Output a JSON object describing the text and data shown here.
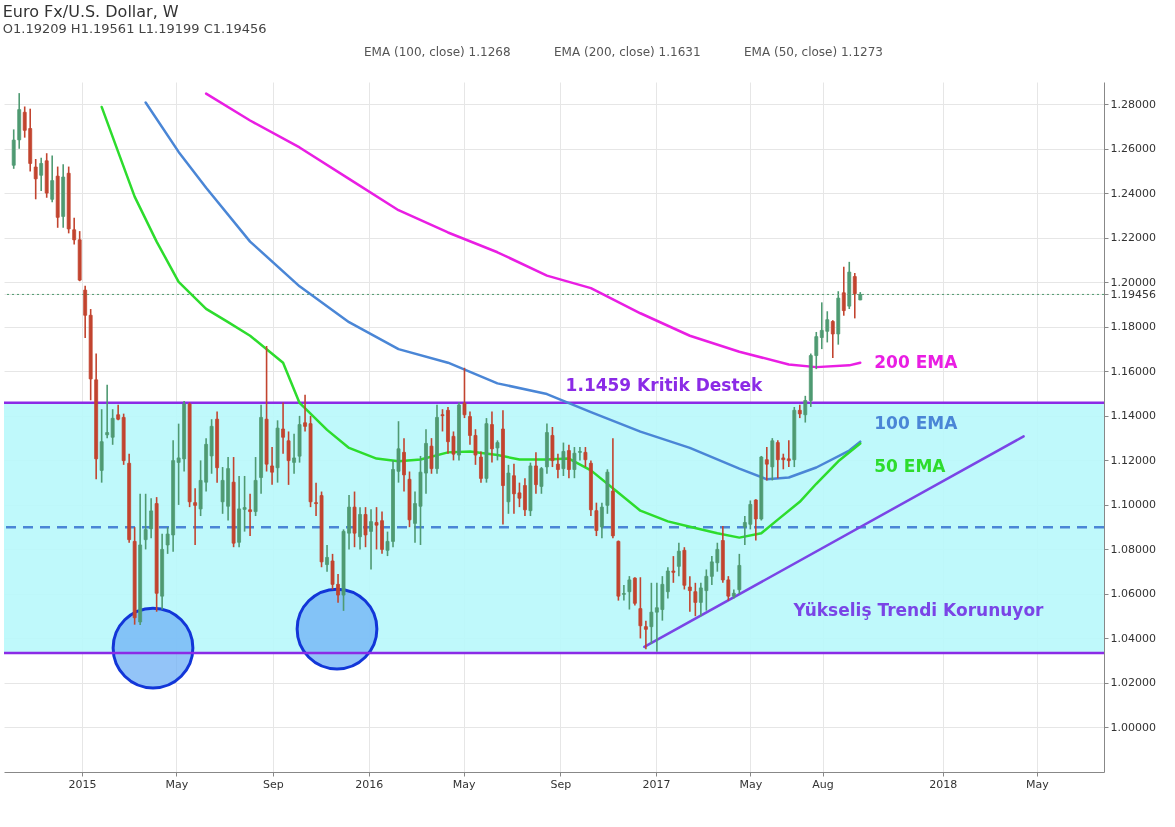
{
  "chart_data": {
    "type": "candlestick",
    "title": "Euro Fx/U.S. Dollar, W",
    "subtitle": "O1.19209 H1.19561 L1.19199 C1.19456",
    "x": [
      "2014-10-06",
      "2014-10-13",
      "2014-10-20",
      "2014-10-27",
      "2014-11-03",
      "2014-11-10",
      "2014-11-17",
      "2014-11-24",
      "2014-12-01",
      "2014-12-08",
      "2014-12-15",
      "2014-12-22",
      "2014-12-29",
      "2015-01-05",
      "2015-01-12",
      "2015-01-19",
      "2015-01-26",
      "2015-02-02",
      "2015-02-09",
      "2015-02-16",
      "2015-02-23",
      "2015-03-02",
      "2015-03-09",
      "2015-03-16",
      "2015-03-23",
      "2015-03-30",
      "2015-04-06",
      "2015-04-13",
      "2015-04-20",
      "2015-04-27",
      "2015-05-04",
      "2015-05-11",
      "2015-05-18",
      "2015-05-25",
      "2015-06-01",
      "2015-06-08",
      "2015-06-15",
      "2015-06-22",
      "2015-06-29",
      "2015-07-06",
      "2015-07-13",
      "2015-07-20",
      "2015-07-27",
      "2015-08-03",
      "2015-08-10",
      "2015-08-17",
      "2015-08-24",
      "2015-08-31",
      "2015-09-07",
      "2015-09-14",
      "2015-09-21",
      "2015-09-28",
      "2015-10-05",
      "2015-10-12",
      "2015-10-19",
      "2015-10-26",
      "2015-11-02",
      "2015-11-09",
      "2015-11-16",
      "2015-11-23",
      "2015-11-30",
      "2015-12-07",
      "2015-12-14",
      "2015-12-21",
      "2015-12-28",
      "2016-01-04",
      "2016-01-11",
      "2016-01-18",
      "2016-01-25",
      "2016-02-01",
      "2016-02-08",
      "2016-02-15",
      "2016-02-22",
      "2016-02-29",
      "2016-03-07",
      "2016-03-14",
      "2016-03-21",
      "2016-03-28",
      "2016-04-04",
      "2016-04-11",
      "2016-04-18",
      "2016-04-25",
      "2016-05-02",
      "2016-05-09",
      "2016-05-16",
      "2016-05-23",
      "2016-05-30",
      "2016-06-06",
      "2016-06-13",
      "2016-06-20",
      "2016-06-27",
      "2016-07-04",
      "2016-07-11",
      "2016-07-18",
      "2016-07-25",
      "2016-08-01",
      "2016-08-08",
      "2016-08-15",
      "2016-08-22",
      "2016-08-29",
      "2016-09-05",
      "2016-09-12",
      "2016-09-19",
      "2016-09-26",
      "2016-10-03",
      "2016-10-10",
      "2016-10-17",
      "2016-10-24",
      "2016-10-31",
      "2016-11-07",
      "2016-11-14",
      "2016-11-21",
      "2016-11-28",
      "2016-12-05",
      "2016-12-12",
      "2016-12-19",
      "2016-12-26",
      "2017-01-02",
      "2017-01-09",
      "2017-01-16",
      "2017-01-23",
      "2017-01-30",
      "2017-02-06",
      "2017-02-13",
      "2017-02-20",
      "2017-02-27",
      "2017-03-06",
      "2017-03-13",
      "2017-03-20",
      "2017-03-27",
      "2017-04-03",
      "2017-04-10",
      "2017-04-17",
      "2017-04-24",
      "2017-05-01",
      "2017-05-08",
      "2017-05-15",
      "2017-05-22",
      "2017-05-29",
      "2017-06-05",
      "2017-06-12",
      "2017-06-19",
      "2017-06-26",
      "2017-07-03",
      "2017-07-10",
      "2017-07-17",
      "2017-07-24",
      "2017-07-31",
      "2017-08-07",
      "2017-08-14",
      "2017-08-21",
      "2017-08-28",
      "2017-09-04",
      "2017-09-11",
      "2017-09-18"
    ],
    "ohlc": [
      [
        1.2526,
        1.2687,
        1.251,
        1.2639
      ],
      [
        1.264,
        1.285,
        1.26,
        1.2776
      ],
      [
        1.2764,
        1.279,
        1.265,
        1.2683
      ],
      [
        1.2691,
        1.278,
        1.2498,
        1.2534
      ],
      [
        1.2518,
        1.2554,
        1.2373,
        1.2465
      ],
      [
        1.2481,
        1.256,
        1.241,
        1.2534
      ],
      [
        1.2546,
        1.258,
        1.238,
        1.2401
      ],
      [
        1.2373,
        1.257,
        1.236,
        1.2457
      ],
      [
        1.2477,
        1.252,
        1.2245,
        1.2292
      ],
      [
        1.2296,
        1.253,
        1.2245,
        1.2473
      ],
      [
        1.249,
        1.252,
        1.222,
        1.224
      ],
      [
        1.2236,
        1.229,
        1.217,
        1.2191
      ],
      [
        1.2191,
        1.223,
        1.2005,
        1.201
      ],
      [
        1.1965,
        1.1985,
        1.175,
        1.1852
      ],
      [
        1.1852,
        1.188,
        1.147,
        1.1566
      ],
      [
        1.1562,
        1.168,
        1.1115,
        1.1207
      ],
      [
        1.1155,
        1.143,
        1.11,
        1.1284
      ],
      [
        1.1315,
        1.154,
        1.13,
        1.1325
      ],
      [
        1.1304,
        1.143,
        1.127,
        1.1389
      ],
      [
        1.1405,
        1.145,
        1.138,
        1.1385
      ],
      [
        1.1393,
        1.141,
        1.118,
        1.1199
      ],
      [
        1.1187,
        1.123,
        1.083,
        1.0844
      ],
      [
        1.0836,
        1.09,
        1.0462,
        1.0493
      ],
      [
        1.0474,
        1.105,
        1.046,
        1.082
      ],
      [
        1.0844,
        1.105,
        1.08,
        1.0889
      ],
      [
        1.0893,
        1.103,
        1.085,
        1.0973
      ],
      [
        1.1006,
        1.1035,
        1.052,
        1.0603
      ],
      [
        1.059,
        1.087,
        1.053,
        1.08
      ],
      [
        1.082,
        1.09,
        1.078,
        1.0869
      ],
      [
        1.0865,
        1.129,
        1.079,
        1.1199
      ],
      [
        1.1191,
        1.1365,
        1.1,
        1.1211
      ],
      [
        1.1207,
        1.1467,
        1.115,
        1.1453
      ],
      [
        1.1453,
        1.146,
        1.099,
        1.1014
      ],
      [
        1.101,
        1.1075,
        1.082,
        1.0998
      ],
      [
        1.0982,
        1.12,
        1.095,
        1.111
      ],
      [
        1.1102,
        1.13,
        1.106,
        1.1272
      ],
      [
        1.122,
        1.1385,
        1.114,
        1.1353
      ],
      [
        1.1385,
        1.142,
        1.11,
        1.1167
      ],
      [
        1.1014,
        1.117,
        1.096,
        1.111
      ],
      [
        1.0994,
        1.1215,
        1.093,
        1.1163
      ],
      [
        1.1102,
        1.1215,
        1.081,
        1.0828
      ],
      [
        1.0832,
        1.113,
        1.081,
        1.0982
      ],
      [
        1.098,
        1.113,
        1.088,
        1.0988
      ],
      [
        1.0978,
        1.105,
        1.086,
        1.097
      ],
      [
        1.097,
        1.1215,
        1.095,
        1.111
      ],
      [
        1.1123,
        1.145,
        1.105,
        1.1393
      ],
      [
        1.1385,
        1.1714,
        1.115,
        1.1183
      ],
      [
        1.1175,
        1.126,
        1.109,
        1.1147
      ],
      [
        1.1167,
        1.138,
        1.11,
        1.1345
      ],
      [
        1.1341,
        1.146,
        1.123,
        1.1304
      ],
      [
        1.1288,
        1.133,
        1.109,
        1.1199
      ],
      [
        1.1191,
        1.132,
        1.114,
        1.1211
      ],
      [
        1.1219,
        1.14,
        1.119,
        1.1361
      ],
      [
        1.1369,
        1.1495,
        1.133,
        1.1353
      ],
      [
        1.1365,
        1.14,
        1.099,
        1.1014
      ],
      [
        1.101,
        1.11,
        1.095,
        1.1006
      ],
      [
        1.1042,
        1.106,
        1.072,
        1.0744
      ],
      [
        1.0732,
        1.082,
        1.07,
        1.0764
      ],
      [
        1.0748,
        1.078,
        1.062,
        1.0643
      ],
      [
        1.0643,
        1.069,
        1.056,
        1.0595
      ],
      [
        1.0595,
        1.089,
        1.0524,
        1.0881
      ],
      [
        1.0873,
        1.1045,
        1.08,
        1.099
      ],
      [
        1.099,
        1.106,
        1.081,
        1.0873
      ],
      [
        1.0857,
        1.099,
        1.08,
        1.0957
      ],
      [
        1.0957,
        1.099,
        1.081,
        1.0865
      ],
      [
        1.0881,
        1.098,
        1.071,
        1.0925
      ],
      [
        1.0921,
        1.099,
        1.08,
        1.0909
      ],
      [
        1.0929,
        1.097,
        1.078,
        1.08
      ],
      [
        1.0796,
        1.088,
        1.077,
        1.0836
      ],
      [
        1.0836,
        1.12,
        1.081,
        1.1159
      ],
      [
        1.1151,
        1.1376,
        1.11,
        1.1252
      ],
      [
        1.1236,
        1.13,
        1.106,
        1.1135
      ],
      [
        1.1115,
        1.115,
        1.09,
        1.0933
      ],
      [
        1.0917,
        1.106,
        1.083,
        1.1006
      ],
      [
        1.0994,
        1.122,
        1.082,
        1.1147
      ],
      [
        1.1143,
        1.134,
        1.105,
        1.1276
      ],
      [
        1.1264,
        1.13,
        1.114,
        1.1163
      ],
      [
        1.1163,
        1.145,
        1.114,
        1.1393
      ],
      [
        1.1405,
        1.143,
        1.133,
        1.1401
      ],
      [
        1.1425,
        1.144,
        1.123,
        1.1284
      ],
      [
        1.1308,
        1.133,
        1.12,
        1.1228
      ],
      [
        1.1224,
        1.146,
        1.12,
        1.1449
      ],
      [
        1.1457,
        1.1616,
        1.139,
        1.1405
      ],
      [
        1.1397,
        1.142,
        1.127,
        1.1312
      ],
      [
        1.1312,
        1.134,
        1.118,
        1.1224
      ],
      [
        1.1215,
        1.124,
        1.11,
        1.1119
      ],
      [
        1.1119,
        1.139,
        1.11,
        1.1365
      ],
      [
        1.1361,
        1.142,
        1.119,
        1.1252
      ],
      [
        1.1256,
        1.129,
        1.12,
        1.128
      ],
      [
        1.1341,
        1.1425,
        1.0912,
        1.1087
      ],
      [
        1.1014,
        1.118,
        1.096,
        1.1143
      ],
      [
        1.1131,
        1.1185,
        1.096,
        1.105
      ],
      [
        1.1054,
        1.11,
        1.099,
        1.103
      ],
      [
        1.1087,
        1.112,
        1.095,
        1.0978
      ],
      [
        1.0974,
        1.119,
        1.095,
        1.1175
      ],
      [
        1.1175,
        1.1236,
        1.105,
        1.1091
      ],
      [
        1.1083,
        1.117,
        1.105,
        1.1163
      ],
      [
        1.1171,
        1.1366,
        1.114,
        1.1325
      ],
      [
        1.1312,
        1.135,
        1.117,
        1.1199
      ],
      [
        1.1183,
        1.123,
        1.112,
        1.1159
      ],
      [
        1.1163,
        1.128,
        1.113,
        1.124
      ],
      [
        1.1244,
        1.127,
        1.112,
        1.1159
      ],
      [
        1.1159,
        1.126,
        1.112,
        1.1232
      ],
      [
        1.1236,
        1.126,
        1.12,
        1.124
      ],
      [
        1.1236,
        1.126,
        1.117,
        1.1203
      ],
      [
        1.1187,
        1.12,
        1.095,
        1.0978
      ],
      [
        1.0974,
        1.101,
        1.086,
        1.0885
      ],
      [
        1.0901,
        1.101,
        1.085,
        1.099
      ],
      [
        1.0998,
        1.116,
        1.096,
        1.1147
      ],
      [
        1.1062,
        1.13,
        1.085,
        1.0861
      ],
      [
        1.0836,
        1.084,
        1.057,
        1.059
      ],
      [
        1.0598,
        1.064,
        1.057,
        1.0602
      ],
      [
        1.061,
        1.068,
        1.053,
        1.0663
      ],
      [
        1.0671,
        1.0675,
        1.0548,
        1.0558
      ],
      [
        1.0534,
        1.0675,
        1.04,
        1.0457
      ],
      [
        1.0453,
        1.048,
        1.0352,
        1.0441
      ],
      [
        1.0453,
        1.065,
        1.0375,
        1.0518
      ],
      [
        1.0518,
        1.065,
        1.034,
        1.0538
      ],
      [
        1.053,
        1.068,
        1.048,
        1.0643
      ],
      [
        1.061,
        1.072,
        1.058,
        1.0703
      ],
      [
        1.0703,
        1.077,
        1.065,
        1.0697
      ],
      [
        1.0724,
        1.083,
        1.068,
        1.0792
      ],
      [
        1.0796,
        1.081,
        1.062,
        1.0639
      ],
      [
        1.0631,
        1.068,
        1.052,
        1.0615
      ],
      [
        1.061,
        1.065,
        1.05,
        1.0562
      ],
      [
        1.0562,
        1.065,
        1.05,
        1.0627
      ],
      [
        1.0615,
        1.071,
        1.0525,
        1.0679
      ],
      [
        1.0679,
        1.077,
        1.064,
        1.0744
      ],
      [
        1.074,
        1.083,
        1.07,
        1.08
      ],
      [
        1.084,
        1.0905,
        1.065,
        1.0663
      ],
      [
        1.0663,
        1.068,
        1.057,
        1.059
      ],
      [
        1.059,
        1.062,
        1.058,
        1.0603
      ],
      [
        1.0619,
        1.078,
        1.06,
        1.0728
      ],
      [
        1.0901,
        1.095,
        1.082,
        1.0921
      ],
      [
        1.0913,
        1.102,
        1.089,
        1.1002
      ],
      [
        1.1022,
        1.1025,
        1.084,
        1.0937
      ],
      [
        1.0937,
        1.122,
        1.093,
        1.1215
      ],
      [
        1.1203,
        1.126,
        1.111,
        1.1183
      ],
      [
        1.1171,
        1.13,
        1.111,
        1.1288
      ],
      [
        1.128,
        1.129,
        1.112,
        1.1203
      ],
      [
        1.1211,
        1.123,
        1.116,
        1.1203
      ],
      [
        1.1207,
        1.129,
        1.117,
        1.1199
      ],
      [
        1.1203,
        1.144,
        1.117,
        1.1425
      ],
      [
        1.1425,
        1.145,
        1.139,
        1.1409
      ],
      [
        1.1405,
        1.149,
        1.137,
        1.1469
      ],
      [
        1.1469,
        1.168,
        1.144,
        1.1671
      ],
      [
        1.1671,
        1.1777,
        1.161,
        1.1756
      ],
      [
        1.1752,
        1.191,
        1.17,
        1.1784
      ],
      [
        1.178,
        1.187,
        1.173,
        1.1832
      ],
      [
        1.1824,
        1.183,
        1.166,
        1.1768
      ],
      [
        1.1768,
        1.196,
        1.172,
        1.1929
      ],
      [
        1.1953,
        1.207,
        1.185,
        1.1873
      ],
      [
        1.1893,
        1.2092,
        1.188,
        1.2046
      ],
      [
        1.2026,
        1.2042,
        1.1838,
        1.1949
      ],
      [
        1.19209,
        1.19561,
        1.19199,
        1.19456
      ]
    ],
    "series": [
      {
        "type": "line",
        "name": "200 EMA",
        "color": "#e91ee3",
        "x": [
          "2015-06-08",
          "2015-08-03",
          "2015-10-05",
          "2015-12-07",
          "2016-02-08",
          "2016-04-11",
          "2016-06-13",
          "2016-08-15",
          "2016-10-10",
          "2016-12-12",
          "2017-02-13",
          "2017-04-17",
          "2017-06-19",
          "2017-07-24",
          "2017-09-04",
          "2017-09-18"
        ],
        "values": [
          1.2848,
          1.2727,
          1.2606,
          1.2465,
          1.2324,
          1.2224,
          1.2135,
          1.203,
          1.1974,
          1.1861,
          1.176,
          1.1688,
          1.1631,
          1.1619,
          1.1627,
          1.1639
        ]
      },
      {
        "type": "line",
        "name": "100 EMA",
        "color": "#4a86d6",
        "x": [
          "2015-03-23",
          "2015-05-04",
          "2015-06-08",
          "2015-08-03",
          "2015-10-05",
          "2015-12-07",
          "2016-02-08",
          "2016-04-11",
          "2016-06-13",
          "2016-08-15",
          "2016-10-10",
          "2016-12-12",
          "2017-02-13",
          "2017-04-17",
          "2017-05-22",
          "2017-06-19",
          "2017-07-24",
          "2017-09-04",
          "2017-09-18"
        ],
        "values": [
          1.2808,
          1.2586,
          1.2425,
          1.2183,
          1.1982,
          1.1821,
          1.17,
          1.1639,
          1.1546,
          1.1498,
          1.1417,
          1.1329,
          1.1256,
          1.1163,
          1.1115,
          1.1123,
          1.1168,
          1.1244,
          1.1284
        ]
      },
      {
        "type": "line",
        "name": "50 EMA",
        "color": "#2ddc2d",
        "x": [
          "2015-01-26",
          "2015-02-16",
          "2015-03-09",
          "2015-04-06",
          "2015-05-04",
          "2015-06-08",
          "2015-07-06",
          "2015-08-03",
          "2015-09-14",
          "2015-10-05",
          "2015-11-09",
          "2015-12-07",
          "2016-01-11",
          "2016-02-08",
          "2016-03-07",
          "2016-04-11",
          "2016-05-09",
          "2016-06-13",
          "2016-07-11",
          "2016-08-15",
          "2016-09-12",
          "2016-10-10",
          "2016-11-14",
          "2016-12-12",
          "2017-01-16",
          "2017-02-13",
          "2017-03-20",
          "2017-04-17",
          "2017-05-15",
          "2017-06-05",
          "2017-07-03",
          "2017-07-24",
          "2017-08-21",
          "2017-09-18"
        ],
        "values": [
          1.2788,
          1.2586,
          1.2385,
          1.2183,
          1.2002,
          1.1881,
          1.1821,
          1.176,
          1.1639,
          1.1458,
          1.1337,
          1.1256,
          1.1208,
          1.1196,
          1.1204,
          1.1236,
          1.124,
          1.1224,
          1.1204,
          1.1204,
          1.1208,
          1.1155,
          1.1055,
          1.0974,
          1.0926,
          1.0902,
          1.0873,
          1.0853,
          1.0873,
          1.0934,
          1.1014,
          1.1095,
          1.1196,
          1.1276
        ]
      },
      {
        "type": "line",
        "name": "Yükseliş Trendi Korunuyor",
        "color": "#7a45e6",
        "x": [
          "2016-12-17",
          "2018-04-14"
        ],
        "values": [
          1.0362,
          1.1308
        ]
      }
    ],
    "xlim": [
      "2014-09-30",
      "2018-07-19"
    ],
    "xticks": [
      {
        "value": "2015-01-01",
        "label": "2015"
      },
      {
        "value": "2015-05-01",
        "label": "May"
      },
      {
        "value": "2015-09-01",
        "label": "Sep"
      },
      {
        "value": "2016-01-01",
        "label": "2016"
      },
      {
        "value": "2016-05-01",
        "label": "May"
      },
      {
        "value": "2016-09-01",
        "label": "Sep"
      },
      {
        "value": "2017-01-01",
        "label": "2017"
      },
      {
        "value": "2017-05-01",
        "label": "May"
      },
      {
        "value": "2017-08-01",
        "label": "Aug"
      },
      {
        "value": "2018-01-01",
        "label": "2018"
      },
      {
        "value": "2018-05-01",
        "label": "May"
      }
    ],
    "ylim": [
      0.98,
      1.29
    ],
    "yticks": [
      {
        "value": 1.0,
        "label": "1.00000"
      },
      {
        "value": 1.02,
        "label": "1.02000"
      },
      {
        "value": 1.04,
        "label": "1.04000"
      },
      {
        "value": 1.06,
        "label": "1.06000"
      },
      {
        "value": 1.08,
        "label": "1.08000"
      },
      {
        "value": 1.1,
        "label": "1.10000"
      },
      {
        "value": 1.12,
        "label": "1.12000"
      },
      {
        "value": 1.14,
        "label": "1.14000"
      },
      {
        "value": 1.16,
        "label": "1.16000"
      },
      {
        "value": 1.18,
        "label": "1.18000"
      },
      {
        "value": 1.19456,
        "label": "1.19456"
      },
      {
        "value": 1.2,
        "label": "1.20000"
      },
      {
        "value": 1.22,
        "label": "1.22000"
      },
      {
        "value": 1.24,
        "label": "1.24000"
      },
      {
        "value": 1.26,
        "label": "1.26000"
      },
      {
        "value": 1.28,
        "label": "1.28000"
      }
    ],
    "grid": true,
    "bands": [
      {
        "axis": "y",
        "from": 1.0335,
        "to": 1.1459,
        "color": "#b8f8fb"
      }
    ],
    "ref_lines": [
      {
        "axis": "y",
        "value": 1.1459,
        "label": "1.1459 Kritik Destek",
        "color": "#8b2be6"
      },
      {
        "axis": "y",
        "value": 1.0335,
        "color": "#8b2be6"
      },
      {
        "axis": "y",
        "value": 1.09,
        "color": "#4a86d6",
        "line_style": "dashed"
      },
      {
        "axis": "y",
        "value": 1.19456,
        "color": "#4e9a6e",
        "line_style": "dotted"
      }
    ],
    "annotations": [
      "EMA (100, close) 1.1268",
      "EMA (200, close) 1.1631",
      "EMA (50, close) 1.1273"
    ]
  }
}
